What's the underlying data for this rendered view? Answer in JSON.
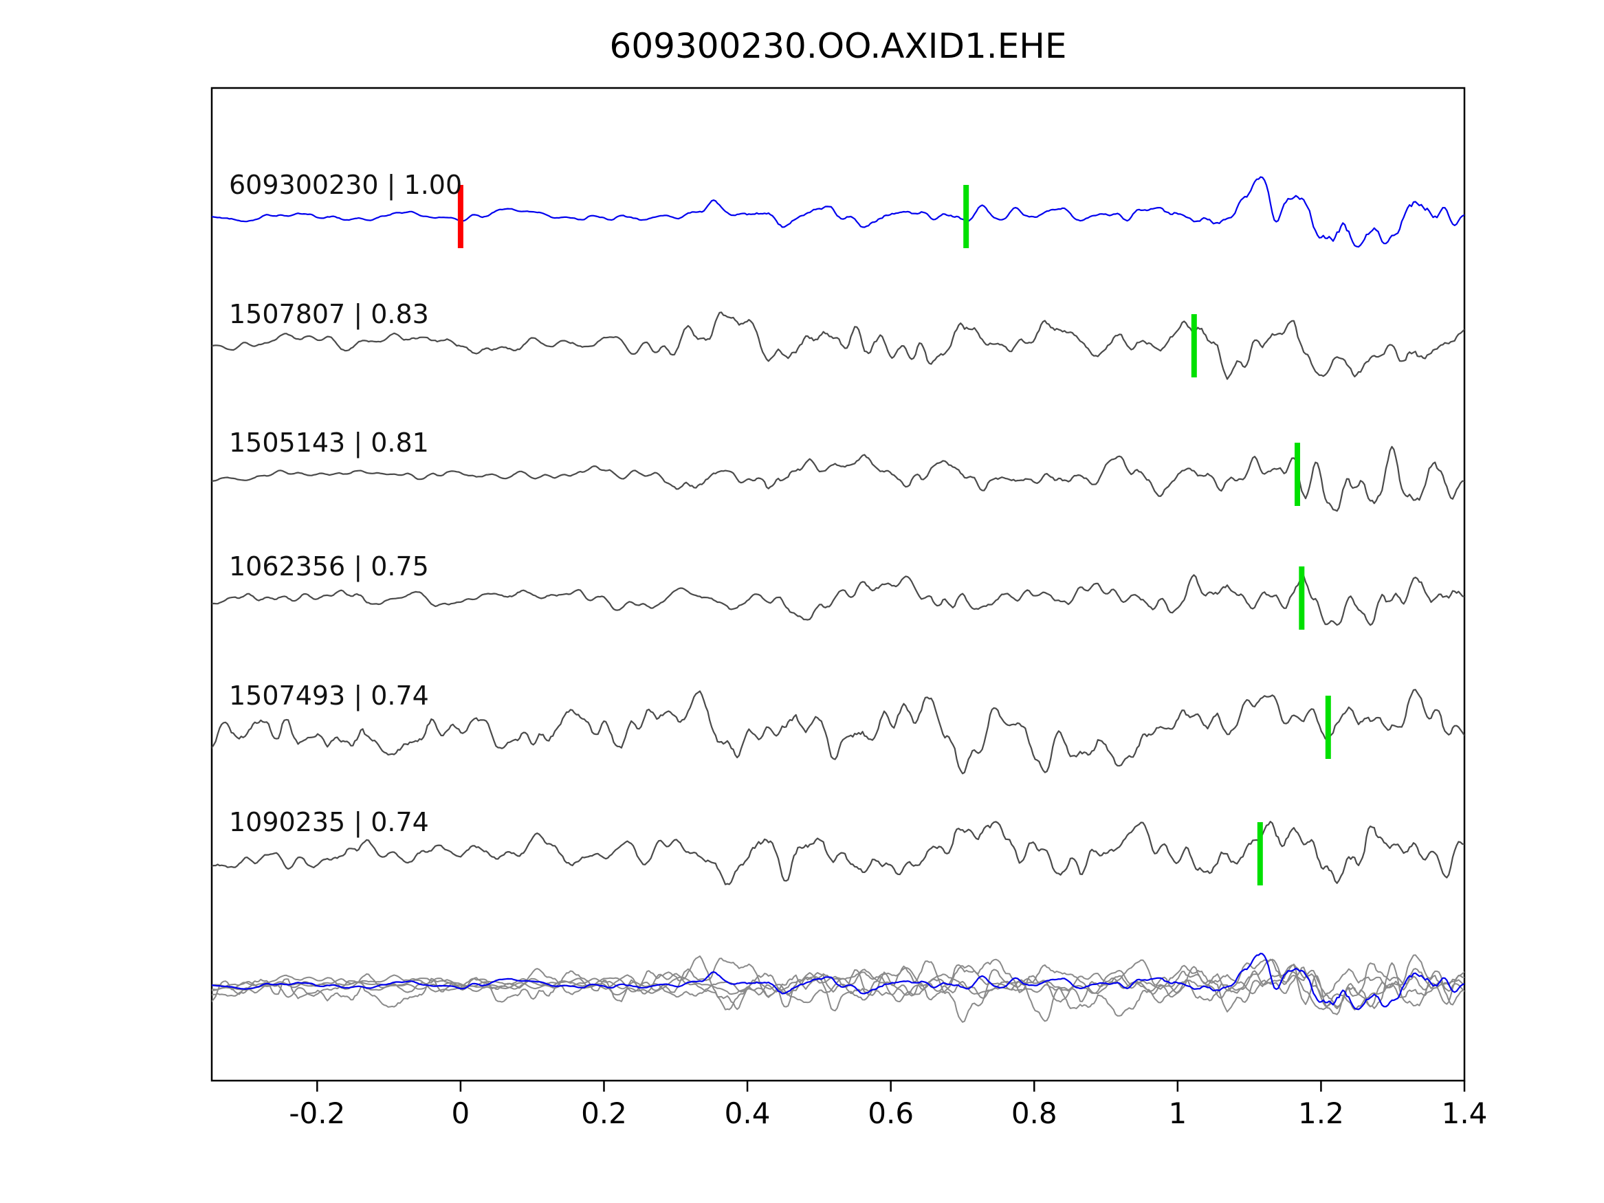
{
  "figure": {
    "title": "609300230.OO.AXID1.EHE"
  },
  "chart_data": {
    "type": "line",
    "title": "609300230.OO.AXID1.EHE",
    "xlabel": "",
    "ylabel": "",
    "xlim": [
      -0.347,
      1.4
    ],
    "x_ticks": [
      -0.2,
      0,
      0.2,
      0.4,
      0.6,
      0.8,
      1,
      1.2,
      1.4
    ],
    "x_tick_labels": [
      "-0.2",
      "0",
      "0.2",
      "0.4",
      "0.6",
      "0.8",
      "1",
      "1.2",
      "1.4"
    ],
    "grid": false,
    "legend": null,
    "description": "Seismic template-matching figure: blue query waveform vs gray candidate waveforms with correlation scores; red tick = query origin time at 0, green ticks = pick times; bottom row overlays all traces",
    "colors": {
      "query_trace": "#0000ee",
      "match_trace": "#4a4a4a",
      "overlay_trace": "#8a8a8a",
      "pick_marker": "#00e000",
      "origin_marker": "#ff0000",
      "border": "#000000"
    },
    "traces": [
      {
        "label": "609300230 | 1.00",
        "id": "609300230",
        "score": 1.0,
        "role": "query",
        "markers": [
          {
            "x": 0.0,
            "type": "origin"
          },
          {
            "x": 0.705,
            "type": "pick"
          }
        ],
        "seed": 42,
        "envelope": [
          [
            -0.35,
            8
          ],
          [
            0.3,
            9
          ],
          [
            0.42,
            24
          ],
          [
            0.6,
            18
          ],
          [
            0.9,
            16
          ],
          [
            1.02,
            22
          ],
          [
            1.1,
            45
          ],
          [
            1.2,
            62
          ],
          [
            1.27,
            75
          ],
          [
            1.35,
            50
          ],
          [
            1.4,
            30
          ]
        ]
      },
      {
        "label": "1507807 | 0.83",
        "id": "1507807",
        "score": 0.83,
        "role": "match",
        "markers": [
          {
            "x": 1.023,
            "type": "pick"
          }
        ],
        "seed": 7,
        "envelope": [
          [
            -0.35,
            14
          ],
          [
            0.25,
            18
          ],
          [
            0.38,
            45
          ],
          [
            0.55,
            50
          ],
          [
            0.75,
            40
          ],
          [
            0.95,
            35
          ],
          [
            1.08,
            70
          ],
          [
            1.2,
            55
          ],
          [
            1.3,
            45
          ],
          [
            1.4,
            38
          ]
        ]
      },
      {
        "label": "1505143 | 0.81",
        "id": "1505143",
        "score": 0.81,
        "role": "match",
        "markers": [
          {
            "x": 1.167,
            "type": "pick"
          }
        ],
        "seed": 13,
        "envelope": [
          [
            -0.35,
            7
          ],
          [
            0.15,
            9
          ],
          [
            0.45,
            30
          ],
          [
            0.95,
            28
          ],
          [
            1.1,
            38
          ],
          [
            1.18,
            65
          ],
          [
            1.3,
            55
          ],
          [
            1.4,
            45
          ]
        ]
      },
      {
        "label": "1062356 | 0.75",
        "id": "1062356",
        "score": 0.75,
        "role": "match",
        "markers": [
          {
            "x": 1.173,
            "type": "pick"
          }
        ],
        "seed": 99,
        "envelope": [
          [
            -0.35,
            14
          ],
          [
            0.35,
            16
          ],
          [
            0.6,
            26
          ],
          [
            1.0,
            30
          ],
          [
            1.12,
            50
          ],
          [
            1.22,
            60
          ],
          [
            1.32,
            55
          ],
          [
            1.4,
            40
          ]
        ]
      },
      {
        "label": "1507493 | 0.74",
        "id": "1507493",
        "score": 0.74,
        "role": "match",
        "markers": [
          {
            "x": 1.21,
            "type": "pick"
          }
        ],
        "seed": 5,
        "envelope": [
          [
            -0.35,
            45
          ],
          [
            0.3,
            50
          ],
          [
            0.6,
            55
          ],
          [
            1.0,
            50
          ],
          [
            1.2,
            55
          ],
          [
            1.4,
            42
          ]
        ]
      },
      {
        "label": "1090235 | 0.74",
        "id": "1090235",
        "score": 0.74,
        "role": "match",
        "markers": [
          {
            "x": 1.115,
            "type": "pick"
          }
        ],
        "seed": 77,
        "envelope": [
          [
            -0.35,
            22
          ],
          [
            0.33,
            24
          ],
          [
            0.42,
            55
          ],
          [
            0.75,
            45
          ],
          [
            1.0,
            42
          ],
          [
            1.12,
            65
          ],
          [
            1.22,
            60
          ],
          [
            1.4,
            40
          ]
        ]
      }
    ],
    "overlay_row": {
      "description": "All candidate traces (gray) overlaid with the query trace (blue)",
      "amp_scale": 0.8
    }
  }
}
